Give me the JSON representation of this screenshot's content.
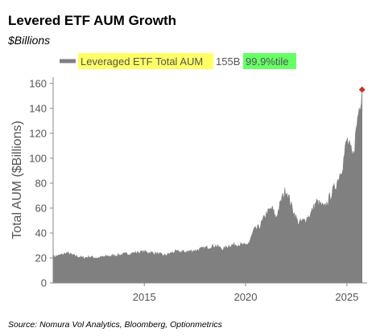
{
  "header": {
    "title": "Levered ETF AUM Growth",
    "subtitle": "$Billions"
  },
  "footer": {
    "source": "Source: Nomura Vol Analytics, Bloomberg, Optionmetrics"
  },
  "chart_data": {
    "type": "area",
    "ylabel": "Total AUM ($Billions)",
    "xlabel": "",
    "ylim": [
      0,
      165
    ],
    "xlim": [
      2010.5,
      2026.0
    ],
    "y_ticks": [
      0,
      20,
      40,
      60,
      80,
      100,
      120,
      140,
      160
    ],
    "x_ticks": [
      2015,
      2020,
      2025
    ],
    "grid": false,
    "legend": {
      "placement": "top",
      "label": "Leveraged ETF Total AUM",
      "value_text": "155B",
      "percentile_text": "99.9%tile",
      "label_highlight": "#ffff66",
      "percentile_highlight": "#66ff66"
    },
    "series": [
      {
        "name": "Leveraged ETF Total AUM",
        "color": "#808080",
        "x": [
          2010.5,
          2010.8,
          2011.2,
          2011.5,
          2011.8,
          2012.0,
          2012.3,
          2012.7,
          2013.0,
          2013.5,
          2014.0,
          2014.5,
          2015.0,
          2015.5,
          2016.0,
          2016.5,
          2017.0,
          2017.5,
          2018.0,
          2018.5,
          2018.9,
          2019.2,
          2019.6,
          2020.0,
          2020.2,
          2020.4,
          2020.7,
          2021.0,
          2021.3,
          2021.5,
          2021.8,
          2022.0,
          2022.3,
          2022.6,
          2022.9,
          2023.2,
          2023.5,
          2023.9,
          2024.2,
          2024.5,
          2024.8,
          2025.0,
          2025.3,
          2025.55,
          2025.75
        ],
        "values": [
          21,
          22,
          24,
          22,
          21,
          20,
          21,
          20,
          21,
          22,
          23,
          24,
          25,
          24,
          22,
          25,
          25,
          26,
          28,
          30,
          27,
          30,
          31,
          30,
          33,
          42,
          45,
          55,
          60,
          52,
          68,
          75,
          60,
          48,
          50,
          55,
          65,
          60,
          70,
          80,
          95,
          115,
          100,
          135,
          155
        ]
      }
    ],
    "annotations": [
      {
        "type": "marker",
        "x": 2025.75,
        "y": 155,
        "color": "#c0392b",
        "shape": "diamond"
      }
    ]
  }
}
